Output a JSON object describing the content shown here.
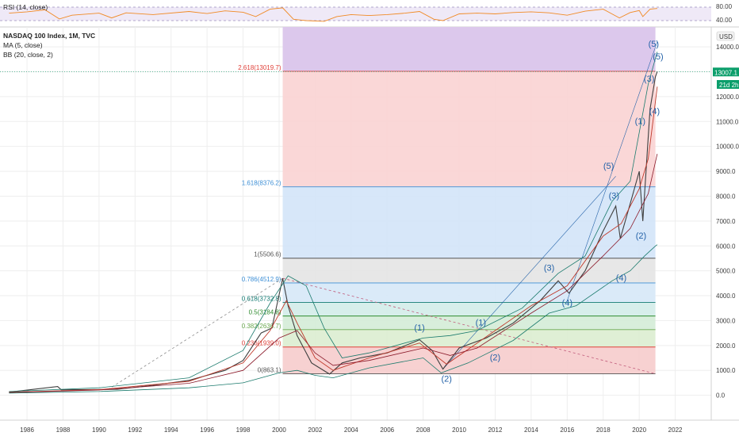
{
  "rsi_panel": {
    "label": "RSI (14, close)",
    "levels": [
      "80.00",
      "40.00"
    ]
  },
  "legend": {
    "title": "NASDAQ 100 Index, 1M, TVC",
    "ma": "MA (5, close)",
    "bb": "BB (20, close, 2)"
  },
  "price_axis": {
    "currency": "USD",
    "current_price": "13007.1",
    "countdown": "21d 2h"
  },
  "colors": {
    "price": "#3f3f3f",
    "ma": "#c0392b",
    "bb": "#1a7a6c",
    "rsi": "#f08a24",
    "wave": "#2462a8",
    "projection": "#7a6fc0"
  },
  "chart_data": {
    "type": "line",
    "title": "NASDAQ 100 Index, 1M, TVC",
    "xlabel": "",
    "ylabel": "",
    "xlim": [
      1984.5,
      2024.0
    ],
    "ylim": [
      -1000,
      14800
    ],
    "grid": true,
    "x_ticks": [
      "1986",
      "1988",
      "1990",
      "1992",
      "1994",
      "1996",
      "1998",
      "2000",
      "2002",
      "2004",
      "2006",
      "2008",
      "2010",
      "2012",
      "2014",
      "2016",
      "2018",
      "2020",
      "2022"
    ],
    "y_ticks": [
      "0.0",
      "1000.0",
      "2000.0",
      "3000.0",
      "4000.0",
      "5000.0",
      "6000.0",
      "7000.0",
      "8000.0",
      "9000.0",
      "10000.0",
      "11000.0",
      "12000.0",
      "13000.0",
      "14000.0"
    ],
    "series": [
      {
        "name": "NASDAQ 100 Index",
        "points": [
          [
            1985.0,
            125
          ],
          [
            1987.7,
            350
          ],
          [
            1987.9,
            220
          ],
          [
            1990.0,
            230
          ],
          [
            1991.0,
            240
          ],
          [
            1993.0,
            400
          ],
          [
            1995.0,
            600
          ],
          [
            1997.0,
            1000
          ],
          [
            1998.0,
            1400
          ],
          [
            1999.0,
            2500
          ],
          [
            1999.6,
            2700
          ],
          [
            2000.2,
            4700
          ],
          [
            2000.5,
            3600
          ],
          [
            2001.0,
            2400
          ],
          [
            2001.8,
            1300
          ],
          [
            2002.8,
            850
          ],
          [
            2003.5,
            1300
          ],
          [
            2004.5,
            1500
          ],
          [
            2006.0,
            1700
          ],
          [
            2007.8,
            2230
          ],
          [
            2008.5,
            1800
          ],
          [
            2009.1,
            1050
          ],
          [
            2010.0,
            1900
          ],
          [
            2011.5,
            2300
          ],
          [
            2013.0,
            2900
          ],
          [
            2014.5,
            3800
          ],
          [
            2015.5,
            4600
          ],
          [
            2016.1,
            4100
          ],
          [
            2017.0,
            5000
          ],
          [
            2018.0,
            6600
          ],
          [
            2018.7,
            7600
          ],
          [
            2018.95,
            6300
          ],
          [
            2019.5,
            7700
          ],
          [
            2020.0,
            9000
          ],
          [
            2020.2,
            7000
          ],
          [
            2020.6,
            11500
          ],
          [
            2020.9,
            12800
          ],
          [
            2021.0,
            13007
          ]
        ]
      },
      {
        "name": "MA (5, close)",
        "points": [
          [
            1985.0,
            120
          ],
          [
            1990.0,
            225
          ],
          [
            1995.0,
            560
          ],
          [
            1998.0,
            1300
          ],
          [
            1999.5,
            2600
          ],
          [
            2000.4,
            3800
          ],
          [
            2001.0,
            2900
          ],
          [
            2002.0,
            1500
          ],
          [
            2003.0,
            1000
          ],
          [
            2005.0,
            1500
          ],
          [
            2007.8,
            2100
          ],
          [
            2009.3,
            1250
          ],
          [
            2011.0,
            2100
          ],
          [
            2014.0,
            3600
          ],
          [
            2016.0,
            4400
          ],
          [
            2018.0,
            6400
          ],
          [
            2019.0,
            6900
          ],
          [
            2020.0,
            8300
          ],
          [
            2020.5,
            9500
          ],
          [
            2020.9,
            11800
          ],
          [
            2021.0,
            12400
          ]
        ]
      },
      {
        "name": "BB basis",
        "points": [
          [
            1985.0,
            110
          ],
          [
            1990.0,
            210
          ],
          [
            1995.0,
            480
          ],
          [
            1998.0,
            1000
          ],
          [
            2000.0,
            2300
          ],
          [
            2001.0,
            2600
          ],
          [
            2002.0,
            1700
          ],
          [
            2003.0,
            1200
          ],
          [
            2005.0,
            1400
          ],
          [
            2008.0,
            1900
          ],
          [
            2009.5,
            1600
          ],
          [
            2011.0,
            1900
          ],
          [
            2014.0,
            3300
          ],
          [
            2016.0,
            4200
          ],
          [
            2018.0,
            5600
          ],
          [
            2019.5,
            6700
          ],
          [
            2020.5,
            8100
          ],
          [
            2021.0,
            9700
          ]
        ]
      },
      {
        "name": "BB upper",
        "points": [
          [
            1985.0,
            150
          ],
          [
            1990.0,
            300
          ],
          [
            1995.0,
            700
          ],
          [
            1998.0,
            1800
          ],
          [
            1999.5,
            3700
          ],
          [
            2000.5,
            4800
          ],
          [
            2001.5,
            4400
          ],
          [
            2002.5,
            2700
          ],
          [
            2003.5,
            1500
          ],
          [
            2005.0,
            1700
          ],
          [
            2007.5,
            2200
          ],
          [
            2008.0,
            2300
          ],
          [
            2009.5,
            2400
          ],
          [
            2011.0,
            2600
          ],
          [
            2013.5,
            3500
          ],
          [
            2015.5,
            4900
          ],
          [
            2017.0,
            5600
          ],
          [
            2018.5,
            7800
          ],
          [
            2019.5,
            8600
          ],
          [
            2020.5,
            12500
          ],
          [
            2021.0,
            13800
          ]
        ]
      },
      {
        "name": "BB lower",
        "points": [
          [
            1985.0,
            90
          ],
          [
            1990.0,
            150
          ],
          [
            1995.0,
            300
          ],
          [
            1998.0,
            500
          ],
          [
            2000.0,
            900
          ],
          [
            2001.0,
            1000
          ],
          [
            2002.0,
            800
          ],
          [
            2003.0,
            700
          ],
          [
            2005.0,
            1100
          ],
          [
            2008.0,
            1500
          ],
          [
            2009.0,
            900
          ],
          [
            2010.5,
            1300
          ],
          [
            2013.0,
            2200
          ],
          [
            2015.0,
            3300
          ],
          [
            2016.5,
            3600
          ],
          [
            2018.5,
            4600
          ],
          [
            2019.5,
            5000
          ],
          [
            2020.3,
            5600
          ],
          [
            2020.9,
            6000
          ],
          [
            2021.0,
            6050
          ]
        ]
      }
    ],
    "fibonacci": [
      {
        "label": "0(863.1)",
        "value": 863.1,
        "color": "#555555"
      },
      {
        "label": "0.236(1939.0)",
        "value": 1939.0,
        "color": "#e0413a"
      },
      {
        "label": "0.382(2636.7)",
        "value": 2636.7,
        "color": "#6aa84f"
      },
      {
        "label": "0.5(3184.8)",
        "value": 3184.8,
        "color": "#2e8b2e"
      },
      {
        "label": "0.618(3732.8)",
        "value": 3732.8,
        "color": "#127a72"
      },
      {
        "label": "0.786(4512.9)",
        "value": 4512.9,
        "color": "#3d8fd6"
      },
      {
        "label": "1(5506.6)",
        "value": 5506.6,
        "color": "#555555"
      },
      {
        "label": "1.618(8376.2)",
        "value": 8376.2,
        "color": "#3d8fd6"
      },
      {
        "label": "2.618(13019.7)",
        "value": 13019.7,
        "color": "#e0413a"
      }
    ],
    "waves": [
      {
        "label": "(1)",
        "x": 2007.8,
        "y": 2600
      },
      {
        "label": "(2)",
        "x": 2009.3,
        "y": 550
      },
      {
        "label": "(1)",
        "x": 2011.2,
        "y": 2800
      },
      {
        "label": "(2)",
        "x": 2012.0,
        "y": 1400
      },
      {
        "label": "(3)",
        "x": 2015.0,
        "y": 5000
      },
      {
        "label": "(4)",
        "x": 2016.0,
        "y": 3600
      },
      {
        "label": "(5)",
        "x": 2018.3,
        "y": 9100
      },
      {
        "label": "(3)",
        "x": 2018.6,
        "y": 7900
      },
      {
        "label": "(4)",
        "x": 2019.0,
        "y": 4600
      },
      {
        "label": "(1)",
        "x": 2020.05,
        "y": 10900
      },
      {
        "label": "(2)",
        "x": 2020.1,
        "y": 6300
      },
      {
        "label": "(3)",
        "x": 2020.55,
        "y": 12600
      },
      {
        "label": "(4)",
        "x": 2020.85,
        "y": 11300
      },
      {
        "label": "(5)",
        "x": 2020.8,
        "y": 14000
      },
      {
        "label": "(5)",
        "x": 2021.05,
        "y": 13500
      }
    ],
    "rsi": [
      [
        1985,
        62
      ],
      [
        1986,
        66
      ],
      [
        1987,
        72
      ],
      [
        1987.8,
        45
      ],
      [
        1988.5,
        56
      ],
      [
        1990,
        62
      ],
      [
        1990.7,
        48
      ],
      [
        1991.5,
        63
      ],
      [
        1993,
        58
      ],
      [
        1995,
        67
      ],
      [
        1996,
        61
      ],
      [
        1997,
        69
      ],
      [
        1998,
        65
      ],
      [
        1998.7,
        52
      ],
      [
        1999.5,
        74
      ],
      [
        2000.2,
        78
      ],
      [
        2000.8,
        44
      ],
      [
        2001.5,
        40
      ],
      [
        2002.5,
        38
      ],
      [
        2003.2,
        52
      ],
      [
        2004,
        58
      ],
      [
        2005,
        55
      ],
      [
        2006,
        58
      ],
      [
        2007,
        62
      ],
      [
        2007.8,
        67
      ],
      [
        2008.6,
        44
      ],
      [
        2009.1,
        40
      ],
      [
        2010,
        60
      ],
      [
        2011,
        62
      ],
      [
        2012,
        60
      ],
      [
        2013,
        64
      ],
      [
        2014,
        66
      ],
      [
        2015,
        63
      ],
      [
        2016,
        56
      ],
      [
        2017,
        68
      ],
      [
        2018,
        74
      ],
      [
        2018.9,
        48
      ],
      [
        2019.5,
        64
      ],
      [
        2020,
        70
      ],
      [
        2020.2,
        52
      ],
      [
        2020.6,
        74
      ],
      [
        2021,
        76
      ]
    ]
  }
}
